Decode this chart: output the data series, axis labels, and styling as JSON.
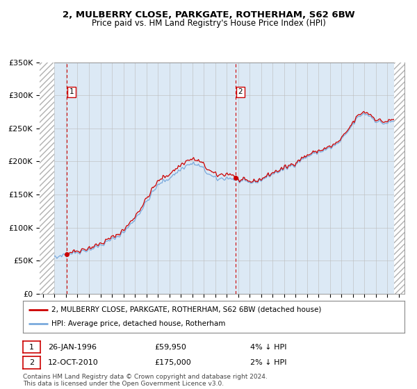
{
  "title": "2, MULBERRY CLOSE, PARKGATE, ROTHERHAM, S62 6BW",
  "subtitle": "Price paid vs. HM Land Registry's House Price Index (HPI)",
  "legend_line1": "2, MULBERRY CLOSE, PARKGATE, ROTHERHAM, S62 6BW (detached house)",
  "legend_line2": "HPI: Average price, detached house, Rotherham",
  "footnote": "Contains HM Land Registry data © Crown copyright and database right 2024.\nThis data is licensed under the Open Government Licence v3.0.",
  "table_row1": [
    "1",
    "26-JAN-1996",
    "£59,950",
    "4% ↓ HPI"
  ],
  "table_row2": [
    "2",
    "12-OCT-2010",
    "£175,000",
    "2% ↓ HPI"
  ],
  "ylim": [
    0,
    350000
  ],
  "xlim_start": 1993.7,
  "xlim_end": 2025.5,
  "sale1_date": 1996.07,
  "sale1_price": 59950,
  "sale2_date": 2010.79,
  "sale2_price": 175000,
  "bg_color": "#dce9f5",
  "hatch_color": "#b0b0b0",
  "red_line_color": "#cc0000",
  "blue_line_color": "#7aaadd",
  "grid_color": "#bbbbbb",
  "marker_color": "#cc0000",
  "hatch_left_end": 1995.0,
  "hatch_right_start": 2024.6
}
